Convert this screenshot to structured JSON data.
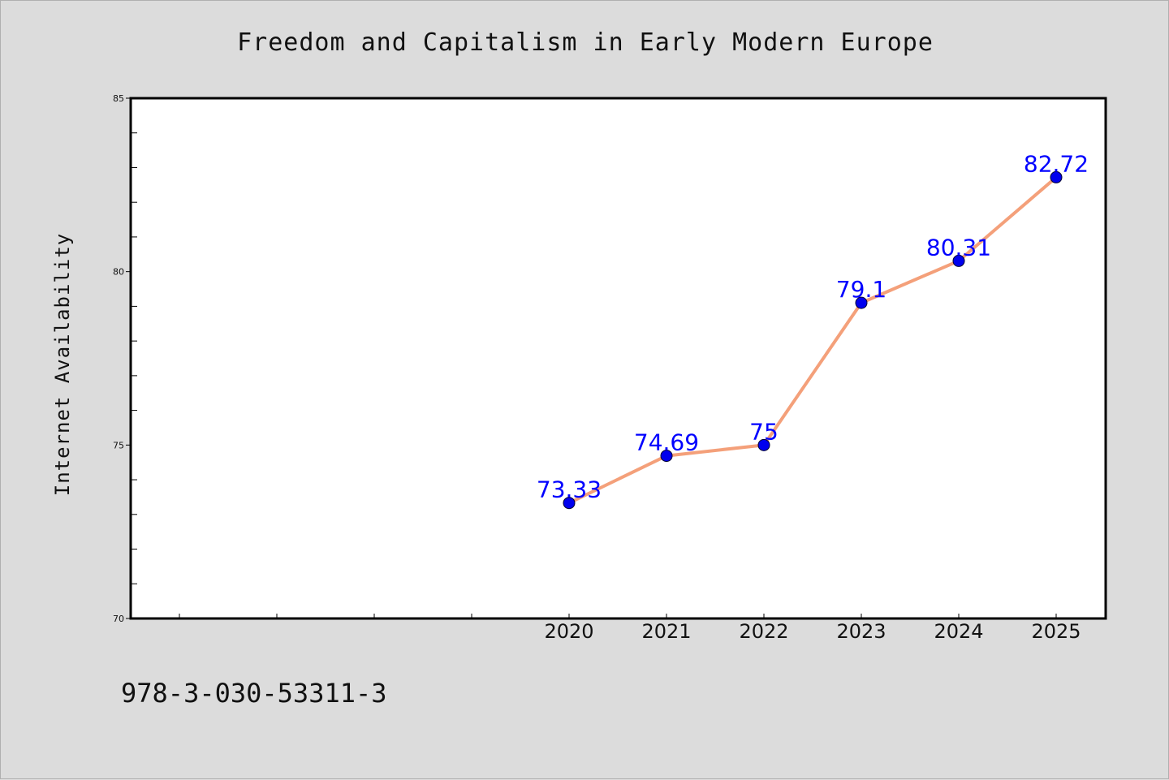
{
  "chart_data": {
    "type": "line",
    "title": "Freedom and Capitalism in Early Modern Europe",
    "xlabel": "",
    "ylabel": "Internet Availability",
    "x": [
      "2020",
      "2021",
      "2022",
      "2023",
      "2024",
      "2025"
    ],
    "series": [
      {
        "values": [
          73.33,
          74.69,
          75,
          79.1,
          80.31,
          82.72
        ],
        "labels": [
          "73.33",
          "74.69",
          "75",
          "79.1",
          "80.31",
          "82.72"
        ]
      }
    ],
    "ylim": [
      70,
      85
    ],
    "yticks": [
      "70",
      "75",
      "80",
      "85"
    ],
    "grid": false,
    "legend": "none",
    "line_color": "#f4a07a",
    "marker_color": "#0000ee",
    "label_color": "#0000ff"
  },
  "footer": {
    "isbn": "978-3-030-53311-3"
  }
}
